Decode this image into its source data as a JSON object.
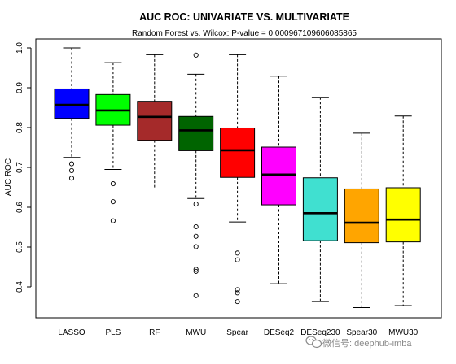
{
  "watermark": {
    "text": "微信号: deephub-imba",
    "icon": "wechat-icon"
  },
  "chart_data": {
    "type": "box",
    "title": "AUC ROC: UNIVARIATE VS. MULTIVARIATE",
    "subtitle": "Random Forest vs. Wilcox: P-value = 0.000967109606085865",
    "xlabel": "",
    "ylabel": "AUC ROC",
    "ylim": [
      0.33,
      1.02
    ],
    "yticks": [
      0.4,
      0.5,
      0.6,
      0.7,
      0.8,
      0.9,
      1.0
    ],
    "ytick_labels": [
      "0.4",
      "0.5",
      "0.6",
      "0.7",
      "0.8",
      "0.9",
      "1.0"
    ],
    "grid": false,
    "categories": [
      "LASSO",
      "PLS",
      "RF",
      "MWU",
      "Spear",
      "DESeq2",
      "DESeq230",
      "Spear30",
      "MWU30"
    ],
    "boxes": [
      {
        "label": "LASSO",
        "color": "#0000ff",
        "whisker_low": 0.725,
        "q1": 0.823,
        "median": 0.857,
        "q3": 0.897,
        "whisker_high": 1.0,
        "outliers": [
          0.709,
          0.692,
          0.673
        ]
      },
      {
        "label": "PLS",
        "color": "#00ff00",
        "whisker_low": 0.695,
        "q1": 0.806,
        "median": 0.843,
        "q3": 0.883,
        "whisker_high": 0.963,
        "outliers": [
          0.659,
          0.614,
          0.566
        ]
      },
      {
        "label": "RF",
        "color": "#a52a2a",
        "whisker_low": 0.646,
        "q1": 0.768,
        "median": 0.827,
        "q3": 0.866,
        "whisker_high": 0.983,
        "outliers": []
      },
      {
        "label": "MWU",
        "color": "#006400",
        "whisker_low": 0.622,
        "q1": 0.742,
        "median": 0.793,
        "q3": 0.828,
        "whisker_high": 0.934,
        "outliers": [
          0.982,
          0.608,
          0.551,
          0.527,
          0.501,
          0.444,
          0.439,
          0.378
        ]
      },
      {
        "label": "Spear",
        "color": "#ff0000",
        "whisker_low": 0.563,
        "q1": 0.675,
        "median": 0.743,
        "q3": 0.799,
        "whisker_high": 0.983,
        "outliers": [
          0.485,
          0.468,
          0.393,
          0.385,
          0.363
        ]
      },
      {
        "label": "DESeq2",
        "color": "#ff00ff",
        "whisker_low": 0.408,
        "q1": 0.606,
        "median": 0.682,
        "q3": 0.751,
        "whisker_high": 0.929,
        "outliers": []
      },
      {
        "label": "DESeq230",
        "color": "#40e0d0",
        "whisker_low": 0.363,
        "q1": 0.516,
        "median": 0.585,
        "q3": 0.674,
        "whisker_high": 0.876,
        "outliers": []
      },
      {
        "label": "Spear30",
        "color": "#ffa500",
        "whisker_low": 0.348,
        "q1": 0.511,
        "median": 0.561,
        "q3": 0.646,
        "whisker_high": 0.786,
        "outliers": []
      },
      {
        "label": "MWU30",
        "color": "#ffff00",
        "whisker_low": 0.353,
        "q1": 0.513,
        "median": 0.569,
        "q3": 0.649,
        "whisker_high": 0.829,
        "outliers": []
      }
    ]
  }
}
